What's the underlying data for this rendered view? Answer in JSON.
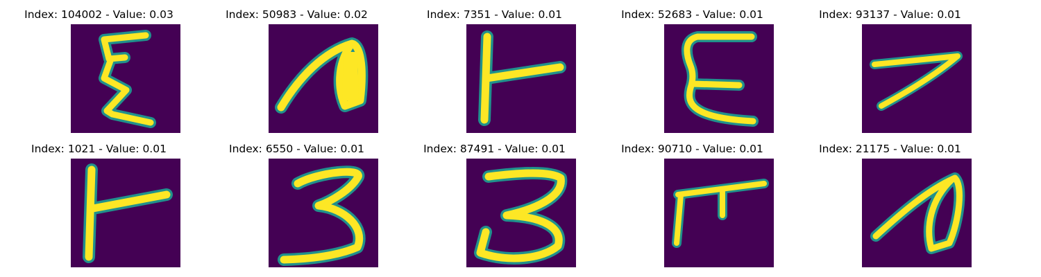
{
  "colors": {
    "background": "#440154",
    "stroke_core": "#fde725",
    "stroke_edge": "#21918c",
    "text": "#000000"
  },
  "figure": {
    "panels": [
      {
        "title": "Index: 104002 - Value: 0.03",
        "glyph": "xi"
      },
      {
        "title": "Index: 50983 - Value: 0.02",
        "glyph": "n-loop"
      },
      {
        "title": "Index: 7351 - Value: 0.01",
        "glyph": "gamma-sideways"
      },
      {
        "title": "Index: 52683 - Value: 0.01",
        "glyph": "E"
      },
      {
        "title": "Index: 93137 - Value: 0.01",
        "glyph": "seven"
      },
      {
        "title": "Index: 1021 - Value: 0.01",
        "glyph": "gamma-sideways"
      },
      {
        "title": "Index: 6550 - Value: 0.01",
        "glyph": "three"
      },
      {
        "title": "Index: 87491 - Value: 0.01",
        "glyph": "three"
      },
      {
        "title": "Index: 90710 - Value: 0.01",
        "glyph": "pi"
      },
      {
        "title": "Index: 21175 - Value: 0.01",
        "glyph": "n-loop"
      }
    ]
  }
}
